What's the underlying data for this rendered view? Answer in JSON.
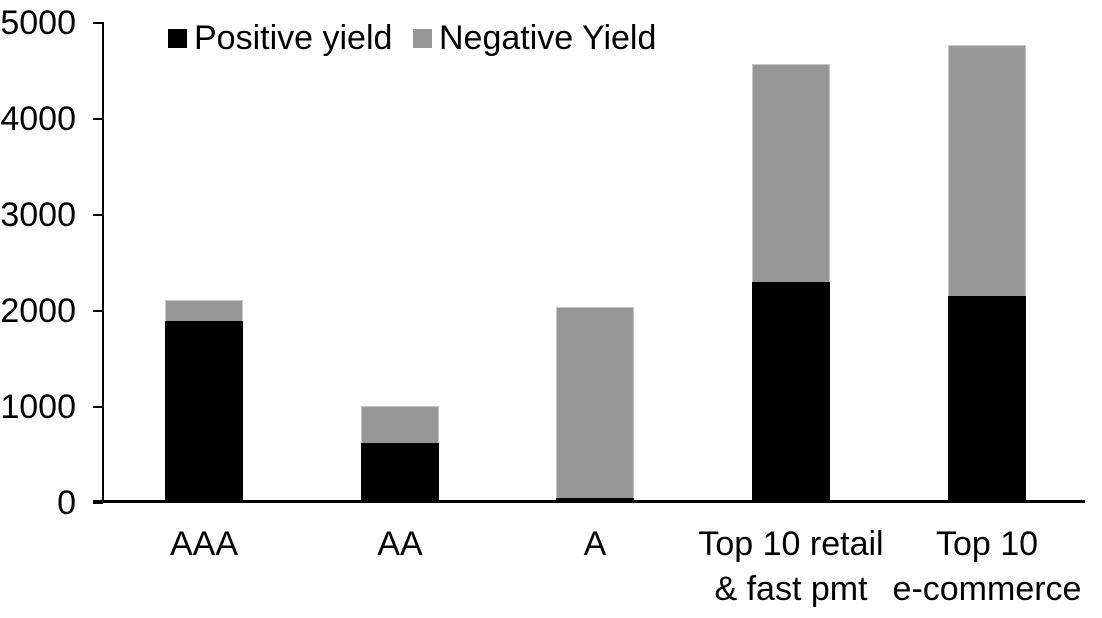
{
  "chart_data": {
    "type": "bar",
    "stacked": true,
    "title": "",
    "categories": [
      "AAA",
      "AA",
      "A",
      "Top 10 retail\n& fast pmt",
      "Top 10\ne-commerce"
    ],
    "series": [
      {
        "name": "Positive yield",
        "color": "#000000",
        "values": [
          1900,
          630,
          50,
          2300,
          2160
        ]
      },
      {
        "name": "Negative Yield",
        "color": "#969696",
        "values": [
          220,
          380,
          1990,
          2270,
          2610
        ]
      }
    ],
    "ylim": [
      0,
      5000
    ],
    "yticks": [
      0,
      1000,
      2000,
      3000,
      4000,
      5000
    ],
    "grid": false,
    "legend_position": "top-left-inside",
    "axis_color": "#000000",
    "background_color": "#ffffff"
  }
}
